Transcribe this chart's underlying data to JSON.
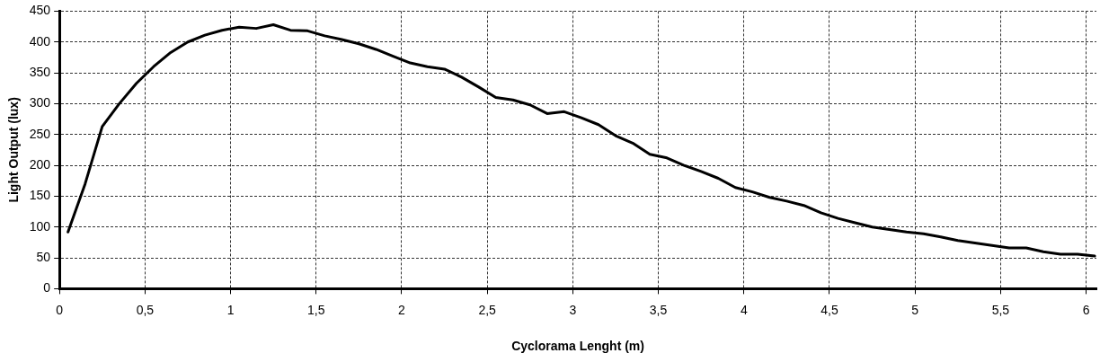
{
  "chart_data": {
    "type": "line",
    "xlabel": "Cyclorama Lenght (m)",
    "ylabel": "Light Output (lux)",
    "x": [
      0.05,
      0.15,
      0.25,
      0.35,
      0.45,
      0.55,
      0.65,
      0.75,
      0.85,
      0.95,
      1.05,
      1.15,
      1.25,
      1.35,
      1.45,
      1.55,
      1.65,
      1.75,
      1.85,
      1.95,
      2.05,
      2.15,
      2.25,
      2.35,
      2.45,
      2.55,
      2.65,
      2.75,
      2.85,
      2.95,
      3.05,
      3.15,
      3.25,
      3.35,
      3.45,
      3.55,
      3.65,
      3.75,
      3.85,
      3.95,
      4.05,
      4.15,
      4.25,
      4.35,
      4.45,
      4.55,
      4.65,
      4.75,
      4.85,
      4.95,
      5.05,
      5.15,
      5.25,
      5.35,
      5.45,
      5.55,
      5.65,
      5.75,
      5.85,
      5.95,
      6.05
    ],
    "series": [
      {
        "color": "#000000",
        "values": [
          92,
          170,
          263,
          300,
          333,
          360,
          383,
          400,
          411,
          419,
          424,
          422,
          428,
          419,
          418,
          410,
          404,
          397,
          388,
          377,
          366,
          360,
          356,
          343,
          327,
          310,
          306,
          298,
          284,
          287,
          277,
          266,
          248,
          236,
          218,
          212,
          200,
          190,
          179,
          164,
          157,
          148,
          142,
          135,
          123,
          114,
          107,
          100,
          96,
          92,
          89,
          84,
          78,
          74,
          70,
          66,
          66,
          60,
          56,
          56,
          53
        ]
      }
    ],
    "xlim": [
      0,
      6.06
    ],
    "xticks": [
      0,
      {
        "value": 0.5,
        "label": "0,5"
      },
      1,
      {
        "value": 1.5,
        "label": "1,5"
      },
      2,
      {
        "value": 2.5,
        "label": "2,5"
      },
      3,
      {
        "value": 3.5,
        "label": "3,5"
      },
      4,
      {
        "value": 4.5,
        "label": "4,5"
      },
      5,
      {
        "value": 5.5,
        "label": "5,5"
      },
      6
    ],
    "ylim": [
      0,
      450
    ],
    "yticks": [
      0,
      50,
      100,
      150,
      200,
      250,
      300,
      350,
      400,
      450
    ],
    "grid": true,
    "legend": false,
    "marker": "none",
    "line_style": "solid"
  }
}
